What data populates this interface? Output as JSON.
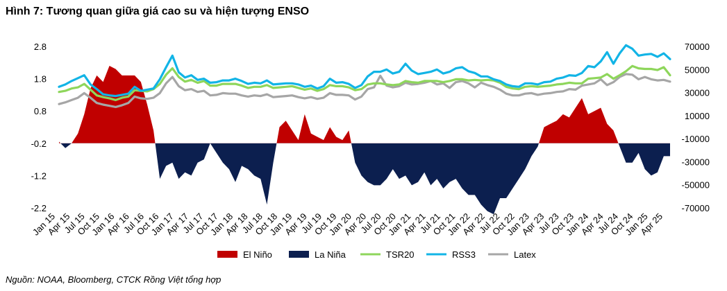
{
  "title": "Hình 7: Tương quan giữa giá cao su và hiện tượng ENSO",
  "source": "Nguồn: NOAA, Bloomberg, CTCK Rồng Việt tổng hợp",
  "chart_data": {
    "type": "area+line",
    "left_axis": {
      "ticks": [
        "2.8",
        "1.8",
        "0.8",
        "-0.2",
        "-1.2",
        "-2.2"
      ],
      "min": -2.2,
      "max": 2.8,
      "baseline": -0.2
    },
    "right_axis": {
      "ticks": [
        "70000",
        "50000",
        "30000",
        "10000",
        "-10000",
        "-30000",
        "-50000",
        "-70000"
      ],
      "min": -70000,
      "max": 70000
    },
    "x_ticks": [
      "Jan 15",
      "Apr 15",
      "Jul 15",
      "Oct 15",
      "Jan 16",
      "Apr 16",
      "Jul 16",
      "Oct 16",
      "Jan 17",
      "Apr 17",
      "Jul 17",
      "Oct 17",
      "Jan 18",
      "Apr 18",
      "Jul 18",
      "Oct 18",
      "Jan 19",
      "Apr 19",
      "Jul 19",
      "Oct 19",
      "Jan 20",
      "Apr 20",
      "Jul 20",
      "Oct 20",
      "Jan 21",
      "Apr 21",
      "Jul 21",
      "Oct 21",
      "Jan 22",
      "Apr 22",
      "Jul 22",
      "Oct 22",
      "Jan 23",
      "Apr 23",
      "Jul 23",
      "Oct 23",
      "Jan 24",
      "Apr 24",
      "Jul 24",
      "Oct 24",
      "Jan 25",
      "Apr 25"
    ],
    "enso_oni": [
      -0.15,
      -0.35,
      -0.2,
      0.1,
      0.7,
      1.5,
      1.9,
      1.7,
      2.2,
      2.1,
      1.9,
      1.9,
      1.9,
      1.7,
      1.0,
      0.2,
      -1.3,
      -0.9,
      -0.8,
      -1.3,
      -1.1,
      -1.2,
      -0.8,
      -0.7,
      -0.2,
      -0.5,
      -0.8,
      -1.0,
      -1.4,
      -0.9,
      -1.0,
      -1.2,
      -1.3,
      -2.1,
      -0.8,
      0.3,
      0.5,
      0.2,
      -0.1,
      0.7,
      0.1,
      0.0,
      -0.1,
      0.3,
      0.0,
      -0.1,
      0.2,
      -0.8,
      -1.2,
      -1.4,
      -1.5,
      -1.5,
      -1.3,
      -1.0,
      -1.3,
      -1.2,
      -1.5,
      -1.4,
      -1.1,
      -1.5,
      -1.3,
      -1.6,
      -1.4,
      -1.3,
      -1.6,
      -1.8,
      -1.8,
      -2.1,
      -2.3,
      -2.4,
      -1.9,
      -1.9,
      -1.6,
      -1.3,
      -1.0,
      -0.6,
      -0.3,
      0.3,
      0.4,
      0.5,
      0.7,
      0.6,
      0.9,
      1.2,
      0.7,
      0.8,
      0.9,
      0.4,
      0.2,
      -0.3,
      -0.8,
      -0.8,
      -0.5,
      -1.0,
      -1.2,
      -1.1,
      -0.6,
      -0.6
    ],
    "series": [
      {
        "name": "TSR20",
        "color": "#8ed65b",
        "values": [
          30500,
          31500,
          33500,
          34500,
          37500,
          32500,
          27500,
          26000,
          25000,
          23500,
          25500,
          26500,
          32000,
          31500,
          31000,
          33000,
          37500,
          45500,
          51000,
          43500,
          39500,
          41000,
          38500,
          40000,
          36000,
          36000,
          37500,
          37500,
          37500,
          36000,
          34000,
          35000,
          35000,
          36500,
          34000,
          34500,
          35000,
          35500,
          34000,
          32500,
          33500,
          31500,
          33000,
          36500,
          35500,
          35500,
          34500,
          32000,
          33000,
          37000,
          38000,
          38000,
          37000,
          36500,
          37000,
          40000,
          39000,
          38500,
          40000,
          40000,
          40000,
          39000,
          40000,
          41500,
          41500,
          40500,
          41000,
          40500,
          41000,
          40500,
          38500,
          35000,
          33500,
          33000,
          35000,
          35500,
          35000,
          35500,
          36000,
          37000,
          37500,
          38500,
          38000,
          38000,
          42000,
          42500,
          43000,
          46000,
          42000,
          45000,
          48500,
          53000,
          51000,
          50500,
          50500,
          49500,
          52000,
          45000
        ]
      },
      {
        "name": "RSS3",
        "color": "#12b4e6",
        "values": [
          35000,
          37000,
          40000,
          42500,
          45000,
          37000,
          33000,
          28500,
          27500,
          27000,
          28000,
          29000,
          35000,
          31500,
          32500,
          33500,
          41500,
          52000,
          62000,
          47500,
          43000,
          45000,
          41000,
          42000,
          38500,
          39000,
          40500,
          40500,
          42000,
          40000,
          37500,
          38500,
          38000,
          40500,
          37000,
          37500,
          38000,
          38000,
          37000,
          35000,
          36000,
          33500,
          35500,
          42000,
          38500,
          39000,
          37500,
          34000,
          36500,
          44000,
          48000,
          48000,
          50000,
          46500,
          48000,
          55000,
          49000,
          46000,
          47000,
          48000,
          50000,
          46500,
          48000,
          51000,
          52000,
          48500,
          47000,
          44000,
          44000,
          41500,
          40000,
          37000,
          35500,
          35000,
          38000,
          38000,
          37000,
          39000,
          39500,
          42000,
          43000,
          45000,
          44500,
          47000,
          53000,
          52000,
          57000,
          65000,
          55000,
          64000,
          71000,
          68000,
          62000,
          63000,
          63500,
          61000,
          64000,
          59000
        ]
      },
      {
        "name": "Latex",
        "color": "#a6a6a6",
        "values": [
          20000,
          21500,
          23500,
          25500,
          29500,
          25500,
          21000,
          19500,
          18500,
          17500,
          19000,
          21000,
          26500,
          25000,
          24500,
          25500,
          29500,
          38000,
          43500,
          35500,
          32000,
          33000,
          30500,
          31500,
          27500,
          28000,
          29500,
          29000,
          29000,
          27500,
          26500,
          27500,
          27000,
          28500,
          26000,
          26500,
          27000,
          27500,
          26000,
          25000,
          26000,
          24500,
          25500,
          29500,
          28000,
          28000,
          27500,
          24000,
          26500,
          33000,
          34500,
          44500,
          36000,
          34500,
          35500,
          38500,
          37000,
          37500,
          38500,
          40000,
          37000,
          38000,
          34000,
          39000,
          40000,
          38000,
          34500,
          38500,
          36500,
          35000,
          32500,
          29000,
          27500,
          27500,
          29000,
          29500,
          28000,
          29000,
          29500,
          30500,
          31000,
          33000,
          32500,
          36000,
          37000,
          38000,
          41500,
          36500,
          39000,
          43500,
          46000,
          45500,
          41500,
          43500,
          41500,
          40500,
          41000,
          39500
        ]
      }
    ],
    "legend": [
      "El Niño",
      "La Niña",
      "TSR20",
      "RSS3",
      "Latex"
    ],
    "legend_colors": [
      "#c00000",
      "#0c1f4f",
      "#8ed65b",
      "#12b4e6",
      "#a6a6a6"
    ],
    "area_colors": {
      "el_nino": "#c00000",
      "la_nina": "#0c1f4f"
    }
  }
}
